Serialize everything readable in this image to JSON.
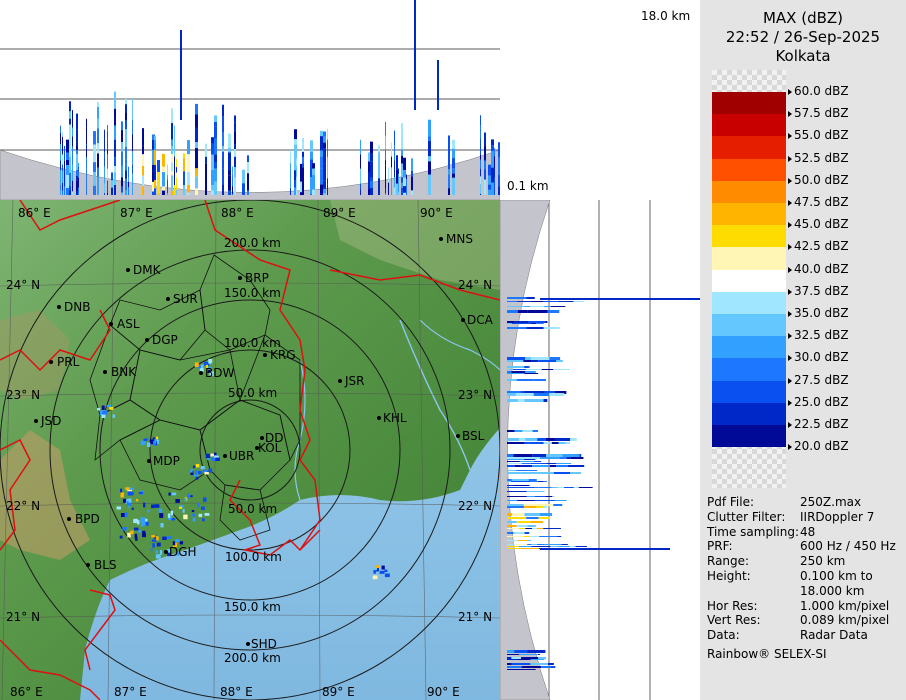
{
  "header": {
    "product": "MAX (dBZ)",
    "datetime": "22:52 / 26-Sep-2025",
    "station": "Kolkata"
  },
  "height_labels": {
    "top": "18.0 km",
    "bottom": "0.1 km"
  },
  "legend": {
    "levels": [
      {
        "label": "60.0 dBZ",
        "color": ""
      },
      {
        "label": "57.5 dBZ",
        "color": "#a00000"
      },
      {
        "label": "55.0 dBZ",
        "color": "#c80000"
      },
      {
        "label": "52.5 dBZ",
        "color": "#e61e00"
      },
      {
        "label": "50.0 dBZ",
        "color": "#ff5000"
      },
      {
        "label": "47.5 dBZ",
        "color": "#ff8c00"
      },
      {
        "label": "45.0 dBZ",
        "color": "#ffb400"
      },
      {
        "label": "42.5 dBZ",
        "color": "#ffdc00"
      },
      {
        "label": "40.0 dBZ",
        "color": "#fff5b4"
      },
      {
        "label": "37.5 dBZ",
        "color": "#ffffff"
      },
      {
        "label": "35.0 dBZ",
        "color": "#a0e6ff"
      },
      {
        "label": "32.5 dBZ",
        "color": "#64c8ff"
      },
      {
        "label": "30.0 dBZ",
        "color": "#32a0ff"
      },
      {
        "label": "27.5 dBZ",
        "color": "#1e78ff"
      },
      {
        "label": "25.0 dBZ",
        "color": "#0a50f0"
      },
      {
        "label": "22.5 dBZ",
        "color": "#0028c8"
      },
      {
        "label": "20.0 dBZ",
        "color": "#000a96"
      }
    ]
  },
  "info": [
    {
      "key": "Pdf File:",
      "value": "250Z.max"
    },
    {
      "key": "Clutter Filter:",
      "value": "IIRDoppler 7"
    },
    {
      "key": "Time sampling:",
      "value": "48"
    },
    {
      "key": "PRF:",
      "value": "600 Hz / 450 Hz"
    },
    {
      "key": "Range:",
      "value": "250 km"
    },
    {
      "key": "Height:",
      "value": "0.100 km to"
    },
    {
      "key": "",
      "value": "18.000 km"
    },
    {
      "key": "Hor Res:",
      "value": "1.000 km/pixel"
    },
    {
      "key": "Vert Res:",
      "value": "0.089 km/pixel"
    },
    {
      "key": "Data:",
      "value": "Radar Data"
    }
  ],
  "credit": "Rainbow® SELEX-SI",
  "map": {
    "lon_labels": [
      "86° E",
      "87° E",
      "88° E",
      "89° E",
      "90° E"
    ],
    "lat_labels": [
      "24° N",
      "23° N",
      "22° N",
      "21° N"
    ],
    "range_labels": [
      "200.0 km",
      "150.0 km",
      "100.0 km",
      "50.0 km",
      "50.0 km",
      "100.0 km",
      "150.0 km",
      "200.0 km"
    ],
    "places": [
      "MNS",
      "DMK",
      "BRP",
      "SUR",
      "DNB",
      "ASL",
      "DGP",
      "DCA",
      "KRG",
      "PRL",
      "BNK",
      "BDW",
      "JSR",
      "JSD",
      "KHL",
      "BSL",
      "DD",
      "KOL",
      "UBR",
      "MDP",
      "BPD",
      "DGH",
      "BLS",
      "SHD"
    ]
  }
}
